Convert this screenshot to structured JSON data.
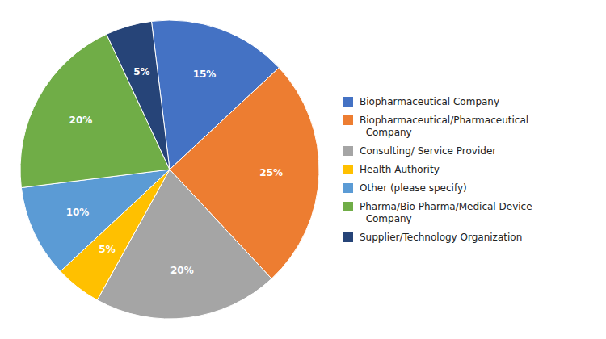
{
  "chart_data": {
    "type": "pie",
    "categories": [
      "Biopharmaceutical Company",
      "Biopharmaceutical/Pharmaceutical\n  Company",
      "Consulting/ Service Provider",
      "Health Authority",
      "Other (please specify)",
      "Pharma/Bio Pharma/Medical Device\n  Company",
      "Supplier/Technology Organization"
    ],
    "values": [
      15,
      25,
      20,
      5,
      10,
      20,
      5
    ],
    "value_labels": [
      "15%",
      "25%",
      "20%",
      "5%",
      "10%",
      "20%",
      "5%"
    ],
    "colors": [
      "#4472C4",
      "#ED7D31",
      "#A5A5A5",
      "#FFC000",
      "#5B9BD5",
      "#70AD47",
      "#264478"
    ],
    "data_labels": true,
    "legend": "right"
  }
}
